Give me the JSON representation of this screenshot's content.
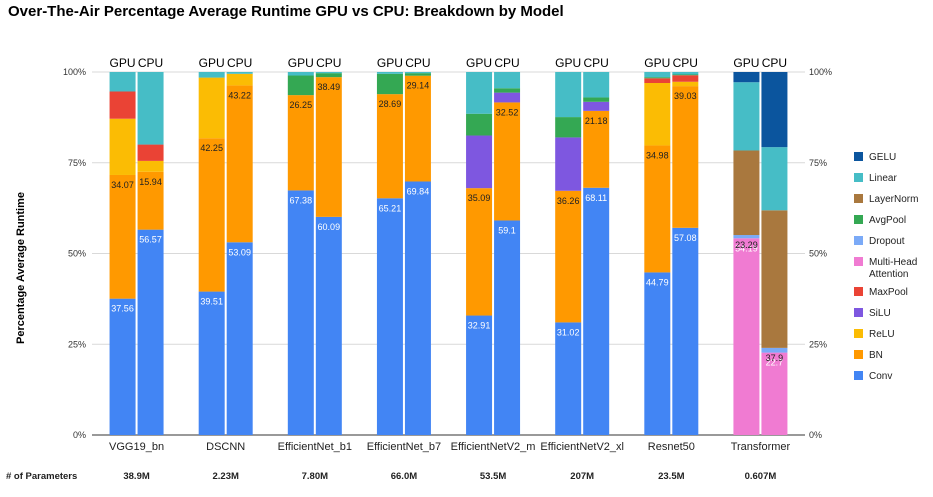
{
  "chart_data": {
    "type": "bar",
    "title": "Over-The-Air Percentage Average Runtime GPU vs CPU: Breakdown by Model",
    "ylabel": "Percentage Average Runtime",
    "ylim": [
      0,
      100
    ],
    "ytick_labels": [
      "0%",
      "25%",
      "50%",
      "75%",
      "100%"
    ],
    "yticks": [
      0,
      25,
      50,
      75,
      100
    ],
    "devices": [
      "GPU",
      "CPU"
    ],
    "params_label": "# of Parameters",
    "layers": [
      "Conv",
      "BN",
      "ReLU",
      "SiLU",
      "MaxPool",
      "Multi-Head Attention",
      "Dropout",
      "AvgPool",
      "LayerNorm",
      "Linear",
      "GELU"
    ],
    "legend_order": [
      "GELU",
      "Linear",
      "LayerNorm",
      "AvgPool",
      "Dropout",
      "Multi-Head Attention",
      "MaxPool",
      "SiLU",
      "ReLU",
      "BN",
      "Conv"
    ],
    "colors": {
      "Conv": "#4285f4",
      "BN": "#ff9900",
      "ReLU": "#fbbc04",
      "SiLU": "#7e57e0",
      "MaxPool": "#ea4335",
      "Multi-Head Attention": "#f07bd2",
      "Dropout": "#7baaf7",
      "AvgPool": "#34a853",
      "LayerNorm": "#a9783e",
      "Linear": "#46bdc6",
      "GELU": "#0b559e"
    },
    "models": [
      {
        "name": "VGG19_bn",
        "params": "38.9M",
        "gpu": [
          [
            "Conv",
            37.56
          ],
          [
            "BN",
            34.07
          ],
          [
            "ReLU",
            15.5
          ],
          [
            "MaxPool",
            7.5
          ],
          [
            "Linear",
            5.37
          ]
        ],
        "cpu": [
          [
            "Conv",
            56.57
          ],
          [
            "BN",
            15.94
          ],
          [
            "ReLU",
            3.0
          ],
          [
            "MaxPool",
            4.5
          ],
          [
            "Linear",
            19.99
          ]
        ],
        "gpu_labels": [
          "37.56",
          "34.07"
        ],
        "cpu_labels": [
          "56.57",
          "15.94"
        ]
      },
      {
        "name": "DSCNN",
        "params": "2.23M",
        "gpu": [
          [
            "Conv",
            39.51
          ],
          [
            "BN",
            42.25
          ],
          [
            "ReLU",
            16.7
          ],
          [
            "Linear",
            1.54
          ]
        ],
        "cpu": [
          [
            "Conv",
            53.09
          ],
          [
            "BN",
            43.22
          ],
          [
            "ReLU",
            3.19
          ],
          [
            "Linear",
            0.5
          ]
        ],
        "gpu_labels": [
          "39.51",
          "42.25"
        ],
        "cpu_labels": [
          "53.09",
          "43.22"
        ]
      },
      {
        "name": "EfficientNet_b1",
        "params": "7.80M",
        "gpu": [
          [
            "Conv",
            67.38
          ],
          [
            "BN",
            26.25
          ],
          [
            "AvgPool",
            5.4
          ],
          [
            "Linear",
            0.97
          ]
        ],
        "cpu": [
          [
            "Conv",
            60.09
          ],
          [
            "BN",
            38.49
          ],
          [
            "AvgPool",
            1.1
          ],
          [
            "Linear",
            0.32
          ]
        ],
        "gpu_labels": [
          "67.38",
          "26.25"
        ],
        "cpu_labels": [
          "60.09",
          "38.49"
        ]
      },
      {
        "name": "EfficientNet_b7",
        "params": "66.0M",
        "gpu": [
          [
            "Conv",
            65.21
          ],
          [
            "BN",
            28.69
          ],
          [
            "AvgPool",
            5.6
          ],
          [
            "Linear",
            0.5
          ]
        ],
        "cpu": [
          [
            "Conv",
            69.84
          ],
          [
            "BN",
            29.14
          ],
          [
            "AvgPool",
            0.7
          ],
          [
            "Linear",
            0.32
          ]
        ],
        "gpu_labels": [
          "65.21",
          "28.69"
        ],
        "cpu_labels": [
          "69.84",
          "29.14"
        ]
      },
      {
        "name": "EfficientNetV2_m",
        "params": "53.5M",
        "gpu": [
          [
            "Conv",
            32.91
          ],
          [
            "BN",
            35.09
          ],
          [
            "SiLU",
            14.5
          ],
          [
            "AvgPool",
            6.0
          ],
          [
            "Linear",
            11.5
          ]
        ],
        "cpu": [
          [
            "Conv",
            59.1
          ],
          [
            "BN",
            32.52
          ],
          [
            "SiLU",
            2.7
          ],
          [
            "AvgPool",
            1.2
          ],
          [
            "Linear",
            4.48
          ]
        ],
        "gpu_labels": [
          "32.91",
          "35.09"
        ],
        "cpu_labels": [
          "59.1",
          "32.52"
        ]
      },
      {
        "name": "EfficientNetV2_xl",
        "params": "207M",
        "gpu": [
          [
            "Conv",
            31.02
          ],
          [
            "BN",
            36.26
          ],
          [
            "SiLU",
            14.7
          ],
          [
            "AvgPool",
            5.6
          ],
          [
            "Linear",
            12.42
          ]
        ],
        "cpu": [
          [
            "Conv",
            68.11
          ],
          [
            "BN",
            21.18
          ],
          [
            "SiLU",
            2.5
          ],
          [
            "AvgPool",
            1.2
          ],
          [
            "Linear",
            7.01
          ]
        ],
        "gpu_labels": [
          "31.02",
          "36.26"
        ],
        "cpu_labels": [
          "68.11",
          "21.18"
        ]
      },
      {
        "name": "Resnet50",
        "params": "23.5M",
        "gpu": [
          [
            "Conv",
            44.79
          ],
          [
            "BN",
            34.98
          ],
          [
            "ReLU",
            17.2
          ],
          [
            "MaxPool",
            1.3
          ],
          [
            "AvgPool",
            0.3
          ],
          [
            "Linear",
            1.43
          ]
        ],
        "cpu": [
          [
            "Conv",
            57.08
          ],
          [
            "BN",
            39.03
          ],
          [
            "ReLU",
            1.2
          ],
          [
            "MaxPool",
            1.8
          ],
          [
            "AvgPool",
            0.2
          ],
          [
            "Linear",
            0.69
          ]
        ],
        "gpu_labels": [
          "44.79",
          "34.98"
        ],
        "cpu_labels": [
          "57.08",
          "39.03"
        ]
      },
      {
        "name": "Transformer",
        "params": "0.607M",
        "gpu": [
          [
            "Multi-Head Attention",
            54.19
          ],
          [
            "Dropout",
            0.9
          ],
          [
            "LayerNorm",
            23.29
          ],
          [
            "Linear",
            18.8
          ],
          [
            "GELU",
            2.82
          ]
        ],
        "cpu": [
          [
            "Multi-Head Attention",
            22.7
          ],
          [
            "Dropout",
            1.3
          ],
          [
            "LayerNorm",
            37.9
          ],
          [
            "Linear",
            17.4
          ],
          [
            "GELU",
            20.7
          ]
        ],
        "gpu_labels": [
          "54.19",
          "23.29"
        ],
        "cpu_labels": [
          "22.7",
          "37.9"
        ]
      }
    ]
  }
}
